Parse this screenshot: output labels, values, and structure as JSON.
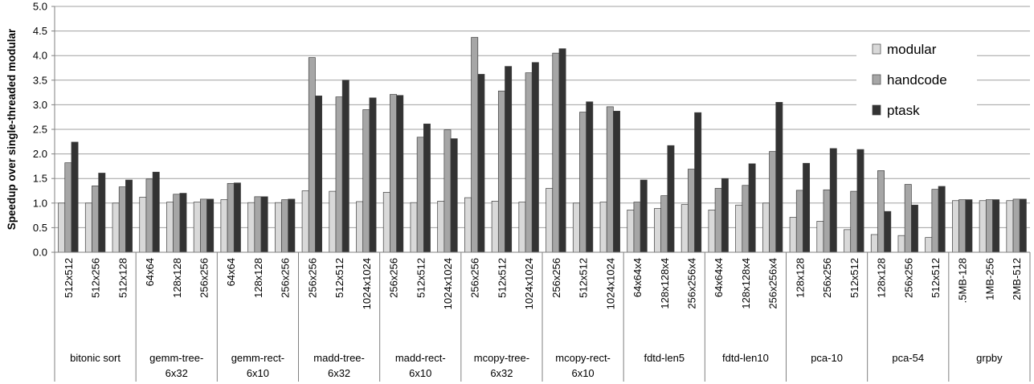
{
  "chart_data": {
    "type": "bar",
    "title": "",
    "xlabel": "",
    "ylabel": "Speedup over single-threaded modular",
    "ylim": [
      0,
      5
    ],
    "yticks": [
      "0.0",
      "0.5",
      "1.0",
      "1.5",
      "2.0",
      "2.5",
      "3.0",
      "3.5",
      "4.0",
      "4.5",
      "5.0"
    ],
    "grid": true,
    "legend_position": "top-right",
    "colors": {
      "modular": "#d9d9d9",
      "handcode": "#a6a6a6",
      "ptask": "#333333"
    },
    "series_names": [
      "modular",
      "handcode",
      "ptask"
    ],
    "groups": [
      {
        "label": [
          "bitonic sort"
        ],
        "items": [
          {
            "label": "512x512",
            "values": [
              1.0,
              1.82,
              2.24
            ]
          },
          {
            "label": "512x256",
            "values": [
              1.0,
              1.35,
              1.61
            ]
          },
          {
            "label": "512x128",
            "values": [
              1.0,
              1.33,
              1.47
            ]
          }
        ]
      },
      {
        "label": [
          "gemm-tree-",
          "6x32"
        ],
        "items": [
          {
            "label": "64x64",
            "values": [
              1.12,
              1.49,
              1.63
            ]
          },
          {
            "label": "128x128",
            "values": [
              1.02,
              1.18,
              1.2
            ]
          },
          {
            "label": "256x256",
            "values": [
              1.02,
              1.08,
              1.08
            ]
          }
        ]
      },
      {
        "label": [
          "gemm-rect-",
          "6x10"
        ],
        "items": [
          {
            "label": "64x64",
            "values": [
              1.07,
              1.4,
              1.41
            ]
          },
          {
            "label": "128x128",
            "values": [
              1.01,
              1.13,
              1.13
            ]
          },
          {
            "label": "256x256",
            "values": [
              1.01,
              1.07,
              1.08
            ]
          }
        ]
      },
      {
        "label": [
          "madd-tree-",
          "6x32"
        ],
        "items": [
          {
            "label": "256x256",
            "values": [
              1.25,
              3.96,
              3.18
            ]
          },
          {
            "label": "512x512",
            "values": [
              1.24,
              3.16,
              3.5
            ]
          },
          {
            "label": "1024x1024",
            "values": [
              1.03,
              2.9,
              3.14
            ]
          }
        ]
      },
      {
        "label": [
          "madd-rect-",
          "6x10"
        ],
        "items": [
          {
            "label": "256x256",
            "values": [
              1.22,
              3.21,
              3.19
            ]
          },
          {
            "label": "512x512",
            "values": [
              1.01,
              2.34,
              2.61
            ]
          },
          {
            "label": "1024x1024",
            "values": [
              1.04,
              2.49,
              2.31
            ]
          }
        ]
      },
      {
        "label": [
          "mcopy-tree-",
          "6x32"
        ],
        "items": [
          {
            "label": "256x256",
            "values": [
              1.11,
              4.37,
              3.62
            ]
          },
          {
            "label": "512x512",
            "values": [
              1.04,
              3.28,
              3.78
            ]
          },
          {
            "label": "1024x1024",
            "values": [
              1.02,
              3.65,
              3.86
            ]
          }
        ]
      },
      {
        "label": [
          "mcopy-rect-",
          "6x10"
        ],
        "items": [
          {
            "label": "256x256",
            "values": [
              1.3,
              4.05,
              4.14
            ]
          },
          {
            "label": "512x512",
            "values": [
              1.0,
              2.85,
              3.06
            ]
          },
          {
            "label": "1024x1024",
            "values": [
              1.02,
              2.96,
              2.87
            ]
          }
        ]
      },
      {
        "label": [
          "fdtd-len5"
        ],
        "items": [
          {
            "label": "64x64x4",
            "values": [
              0.86,
              1.02,
              1.47
            ]
          },
          {
            "label": "128x128x4",
            "values": [
              0.89,
              1.15,
              2.17
            ]
          },
          {
            "label": "256x256x4",
            "values": [
              0.97,
              1.69,
              2.84
            ]
          }
        ]
      },
      {
        "label": [
          "fdtd-len10"
        ],
        "items": [
          {
            "label": "64x64x4",
            "values": [
              0.86,
              1.3,
              1.5
            ]
          },
          {
            "label": "128x128x4",
            "values": [
              0.96,
              1.36,
              1.8
            ]
          },
          {
            "label": "256x256x4",
            "values": [
              1.0,
              2.05,
              3.05
            ]
          }
        ]
      },
      {
        "label": [
          "pca-10"
        ],
        "items": [
          {
            "label": "128x128",
            "values": [
              0.71,
              1.26,
              1.81
            ]
          },
          {
            "label": "256x256",
            "values": [
              0.63,
              1.27,
              2.11
            ]
          },
          {
            "label": "512x512",
            "values": [
              0.46,
              1.24,
              2.09
            ]
          }
        ]
      },
      {
        "label": [
          "pca-54"
        ],
        "items": [
          {
            "label": "128x128",
            "values": [
              0.36,
              1.66,
              0.83
            ]
          },
          {
            "label": "256x256",
            "values": [
              0.34,
              1.38,
              0.96
            ]
          },
          {
            "label": "512x512",
            "values": [
              0.3,
              1.28,
              1.34
            ]
          }
        ]
      },
      {
        "label": [
          "grpby"
        ],
        "items": [
          {
            "label": ".5MB-128",
            "values": [
              1.05,
              1.07,
              1.07
            ]
          },
          {
            "label": "1MB-256",
            "values": [
              1.05,
              1.07,
              1.07
            ]
          },
          {
            "label": "2MB-512",
            "values": [
              1.05,
              1.08,
              1.08
            ]
          }
        ]
      }
    ]
  }
}
